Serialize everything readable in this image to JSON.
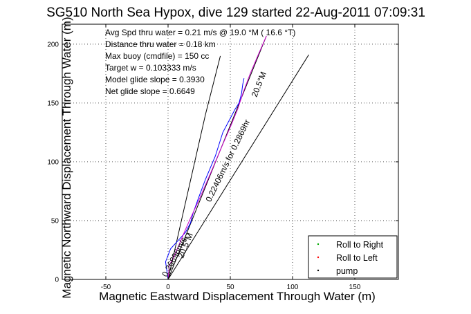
{
  "chart_data": {
    "type": "line",
    "title": "SG510 North Sea Hypox, dive 129 started 22-Aug-2011 07:09:31",
    "xlabel": "Magnetic Eastward Displacement Through Water (m)",
    "ylabel": "Magnetic Northward Displacement Through Water (m)",
    "xlim": [
      -85,
      185
    ],
    "ylim": [
      0,
      217
    ],
    "xticks": [
      -50,
      0,
      50,
      100,
      150
    ],
    "yticks": [
      0,
      50,
      100,
      150,
      200
    ],
    "grid": true,
    "annotations": [
      "Avg Spd thru water =  0.21 m/s @  19.0   °M ( 16.6 °T)",
      "Distance thru water =  0.18 km",
      "Max buoy (cmdfile) = 150 cc",
      "Target w = 0.103333 m/s",
      "Model glide slope = 0.3930",
      "Net glide slope = 0.6649"
    ],
    "rotated_labels": [
      {
        "text": "20.5°M",
        "x": 75,
        "y": 165,
        "angle": 68
      },
      {
        "text": "0.22406m/s for 0.2869hr",
        "x": 50,
        "y": 100,
        "angle": 64
      },
      {
        "text": "20.5°M",
        "x": 16,
        "y": 28,
        "angle": 68
      },
      {
        "text": "0.26896m/s",
        "x": 7,
        "y": 18,
        "angle": 62
      }
    ],
    "legend": {
      "placement": "lower-right",
      "entries": [
        {
          "label": "Roll to Right",
          "color": "#00aa00"
        },
        {
          "label": "Roll to Left",
          "color": "#ff0000"
        },
        {
          "label": "pump",
          "color": "#000000"
        }
      ]
    },
    "reference_lines": [
      {
        "name": "",
        "color": "#000000",
        "x": [
          0,
          30,
          42
        ],
        "y": [
          0,
          140,
          190
        ]
      },
      {
        "name": "",
        "color": "#000000",
        "x": [
          0,
          113
        ],
        "y": [
          0,
          191
        ]
      },
      {
        "name": "",
        "color": "#000000",
        "x": [
          0,
          79
        ],
        "y": [
          0,
          207
        ]
      }
    ],
    "series": [
      {
        "name": "",
        "color": "#0000ff",
        "x": [
          0,
          -2,
          2,
          8,
          14,
          18,
          20,
          24,
          30,
          38,
          44,
          50,
          54,
          57,
          59,
          60,
          61
        ],
        "y": [
          0,
          15,
          26,
          33,
          40,
          48,
          56,
          68,
          85,
          105,
          125,
          137,
          145,
          150,
          158,
          166,
          171
        ]
      },
      {
        "name": "",
        "color": "#cc00cc",
        "x": [
          0,
          1,
          5,
          9,
          13,
          18,
          25,
          34,
          44,
          51,
          56,
          60,
          66,
          72,
          79
        ],
        "y": [
          0,
          12,
          20,
          30,
          40,
          52,
          68,
          90,
          115,
          132,
          145,
          158,
          175,
          190,
          207
        ]
      }
    ]
  }
}
